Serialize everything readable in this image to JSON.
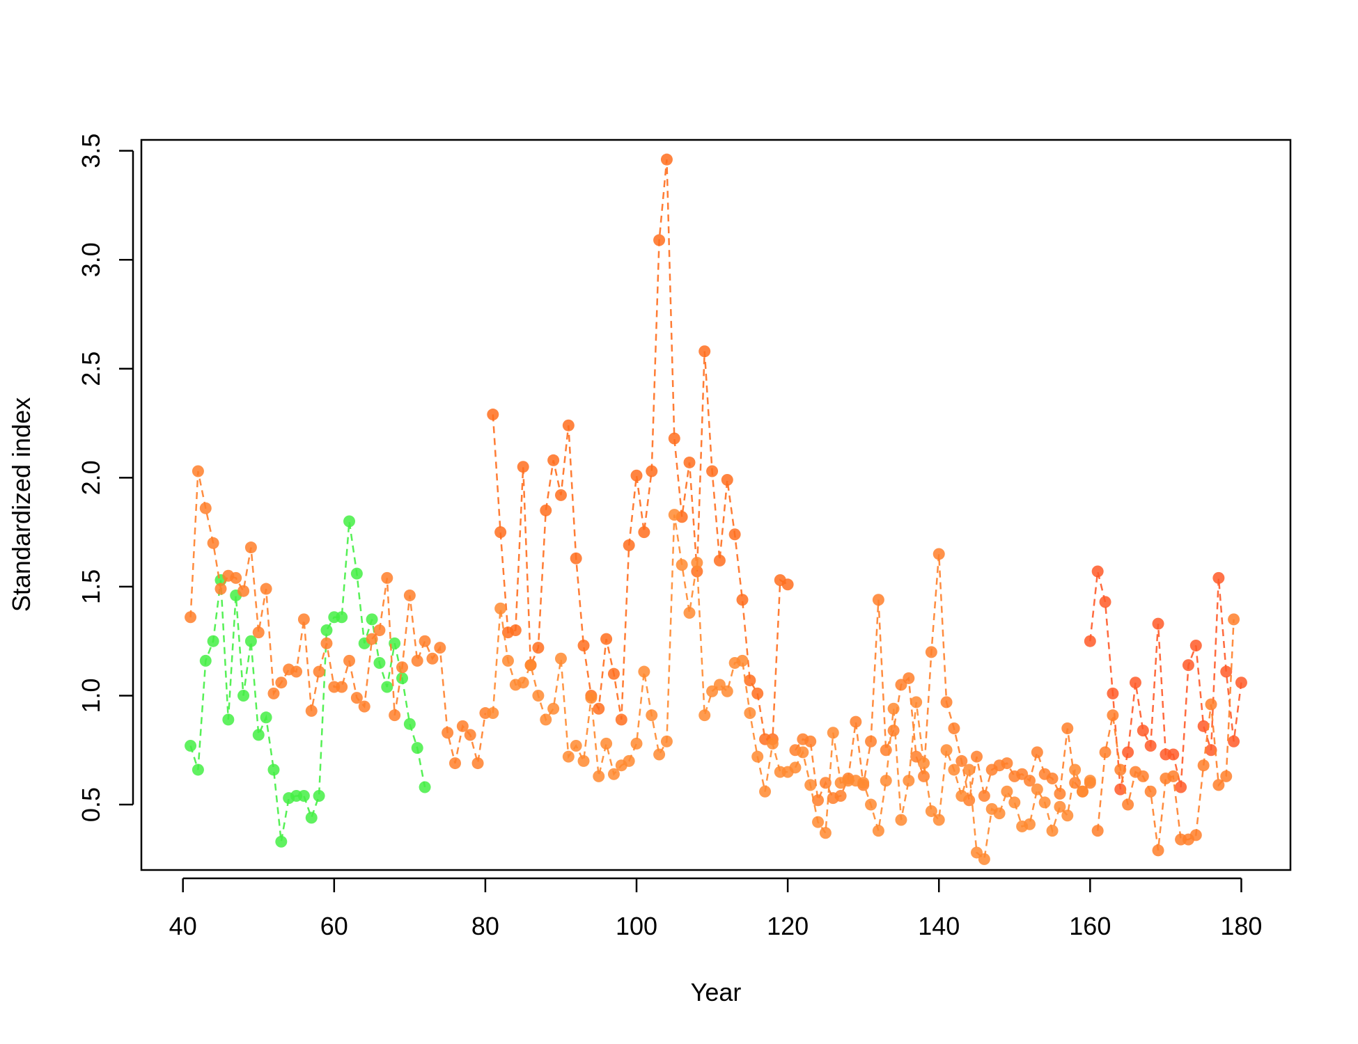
{
  "chart_data": {
    "type": "line",
    "title": "",
    "xlabel": "Year",
    "ylabel": "Standardized index",
    "xlim": [
      34.5,
      186.5
    ],
    "ylim": [
      0.2,
      3.55
    ],
    "x_ticks": [
      40,
      60,
      80,
      100,
      120,
      140,
      160,
      180
    ],
    "x_tick_labels": [
      "40",
      "60",
      "80",
      "100",
      "120",
      "140",
      "160",
      "180"
    ],
    "y_ticks": [
      0.5,
      1.0,
      1.5,
      2.0,
      2.5,
      3.0,
      3.5
    ],
    "y_tick_labels": [
      "0.5",
      "1.0",
      "1.5",
      "2.0",
      "2.5",
      "3.0",
      "3.5"
    ],
    "grid": false,
    "line_style": "dashed",
    "markers": true,
    "series": [
      {
        "color": "#44ee44",
        "x": [
          41,
          42,
          43,
          44,
          45,
          46,
          47,
          48,
          49,
          50,
          51,
          52,
          53,
          54,
          55,
          56,
          57,
          58,
          59,
          60,
          61,
          62,
          63,
          64,
          65,
          66,
          67,
          68,
          69,
          70,
          71,
          72
        ],
        "y": [
          0.77,
          0.66,
          1.16,
          1.25,
          1.53,
          0.89,
          1.46,
          1.0,
          1.25,
          0.82,
          0.9,
          0.66,
          0.33,
          0.53,
          0.54,
          0.54,
          0.44,
          0.54,
          1.3,
          1.36,
          1.36,
          1.8,
          1.56,
          1.24,
          1.35,
          1.15,
          1.04,
          1.24,
          1.08,
          0.87,
          0.76,
          0.58
        ]
      },
      {
        "color": "#ff7f2a",
        "x": [
          41,
          42,
          43,
          44,
          45,
          46,
          47,
          48,
          49,
          50,
          51,
          52,
          53,
          54,
          55,
          56,
          57,
          58,
          59,
          60,
          61,
          62,
          63,
          64,
          65,
          66,
          67,
          68,
          69,
          70,
          71,
          72,
          73,
          74,
          75,
          76,
          77,
          78,
          79,
          80
        ],
        "y": [
          1.36,
          2.03,
          1.86,
          1.7,
          1.49,
          1.55,
          1.54,
          1.48,
          1.68,
          1.29,
          1.49,
          1.01,
          1.06,
          1.12,
          1.11,
          1.35,
          0.93,
          1.11,
          1.24,
          1.04,
          1.04,
          1.16,
          0.99,
          0.95,
          1.26,
          1.3,
          1.54,
          0.91,
          1.13,
          1.46,
          1.16,
          1.25,
          1.17,
          1.22,
          0.83,
          0.69,
          0.86,
          0.82,
          0.69,
          0.92
        ]
      },
      {
        "color": "#ff6e1e",
        "x": [
          81,
          82,
          83,
          84,
          85,
          86,
          87,
          88,
          89,
          90,
          91,
          92,
          93,
          94,
          95,
          96,
          97,
          98,
          99,
          100,
          101,
          102,
          103,
          104,
          105,
          106,
          107,
          108,
          109,
          110,
          111,
          112,
          113,
          114,
          115,
          116,
          117,
          118,
          119,
          120
        ],
        "y": [
          2.29,
          1.75,
          1.29,
          1.3,
          2.05,
          1.14,
          1.22,
          1.85,
          2.08,
          1.92,
          2.24,
          1.63,
          1.23,
          1.0,
          0.94,
          1.26,
          1.1,
          0.89,
          1.69,
          2.01,
          1.75,
          2.03,
          3.09,
          3.46,
          2.18,
          1.82,
          2.07,
          1.57,
          2.58,
          2.03,
          1.62,
          1.99,
          1.74,
          1.44,
          1.07,
          1.01,
          0.8,
          0.8,
          1.53,
          1.51
        ]
      },
      {
        "color": "#ff8a30",
        "x": [
          81,
          82,
          83,
          84,
          85,
          86,
          87,
          88,
          89,
          90,
          91,
          92,
          93,
          94,
          95,
          96,
          97,
          98,
          99,
          100,
          101,
          102,
          103,
          104,
          105,
          106,
          107,
          108,
          109,
          110,
          111,
          112,
          113,
          114,
          115,
          116,
          117,
          118,
          119,
          120
        ],
        "y": [
          0.92,
          1.4,
          1.16,
          1.05,
          1.06,
          1.14,
          1.0,
          0.89,
          0.94,
          1.17,
          0.72,
          0.77,
          0.7,
          0.99,
          0.63,
          0.78,
          0.64,
          0.68,
          0.7,
          0.78,
          1.11,
          0.91,
          0.73,
          0.79,
          1.83,
          1.6,
          1.38,
          1.61,
          0.91,
          1.02,
          1.05,
          1.02,
          1.15,
          1.16,
          0.92,
          0.72,
          0.56,
          0.78,
          0.65,
          0.65
        ]
      },
      {
        "color": "#ff7f2a",
        "x": [
          121,
          122,
          123,
          124,
          125,
          126,
          127,
          128,
          129,
          130,
          131,
          132,
          133,
          134,
          135,
          136,
          137,
          138,
          139,
          140,
          141,
          142,
          143,
          144,
          145,
          146,
          147,
          148,
          149,
          150,
          151,
          152,
          153,
          154,
          155,
          156,
          157,
          158,
          159,
          160
        ],
        "y": [
          0.75,
          0.8,
          0.79,
          0.52,
          0.6,
          0.53,
          0.54,
          0.62,
          0.88,
          0.59,
          0.79,
          1.44,
          0.75,
          0.84,
          1.05,
          1.08,
          0.72,
          0.63,
          1.2,
          1.65,
          0.97,
          0.85,
          0.7,
          0.52,
          0.72,
          0.54,
          0.66,
          0.68,
          0.69,
          0.63,
          0.64,
          0.61,
          0.74,
          0.64,
          0.62,
          0.55,
          0.85,
          0.6,
          0.56,
          0.6
        ]
      },
      {
        "color": "#ff8a30",
        "x": [
          121,
          122,
          123,
          124,
          125,
          126,
          127,
          128,
          129,
          130,
          131,
          132,
          133,
          134,
          135,
          136,
          137,
          138,
          139,
          140,
          141,
          142,
          143,
          144,
          145,
          146,
          147,
          148,
          149,
          150,
          151,
          152,
          153,
          154,
          155,
          156,
          157,
          158,
          159,
          160
        ],
        "y": [
          0.67,
          0.74,
          0.59,
          0.42,
          0.37,
          0.83,
          0.6,
          0.61,
          0.61,
          0.6,
          0.5,
          0.38,
          0.61,
          0.94,
          0.43,
          0.61,
          0.97,
          0.69,
          0.47,
          0.43,
          0.75,
          0.66,
          0.54,
          0.66,
          0.28,
          0.25,
          0.48,
          0.46,
          0.56,
          0.51,
          0.4,
          0.41,
          0.57,
          0.51,
          0.38,
          0.49,
          0.45,
          0.66,
          0.56,
          0.61
        ]
      },
      {
        "color": "#ff5a28",
        "x": [
          160,
          161,
          162,
          163,
          164,
          165,
          166,
          167,
          168,
          169,
          170,
          171,
          172,
          173,
          174,
          175,
          176,
          177,
          178,
          179,
          180
        ],
        "y": [
          1.25,
          1.57,
          1.43,
          1.01,
          0.57,
          0.74,
          1.06,
          0.84,
          0.77,
          1.33,
          0.73,
          0.73,
          0.58,
          1.14,
          1.23,
          0.86,
          0.75,
          1.54,
          1.11,
          0.79,
          1.06
        ]
      },
      {
        "color": "#ff7f2a",
        "x": [
          161,
          162,
          163,
          164,
          165,
          166,
          167,
          168,
          169,
          170,
          171,
          172,
          173,
          174,
          175,
          176,
          177,
          178,
          179
        ],
        "y": [
          0.38,
          0.74,
          0.91,
          0.66,
          0.5,
          0.65,
          0.63,
          0.56,
          0.29,
          0.62,
          0.63,
          0.34,
          0.34,
          0.36,
          0.68,
          0.96,
          0.59,
          0.63,
          1.35
        ]
      }
    ]
  }
}
